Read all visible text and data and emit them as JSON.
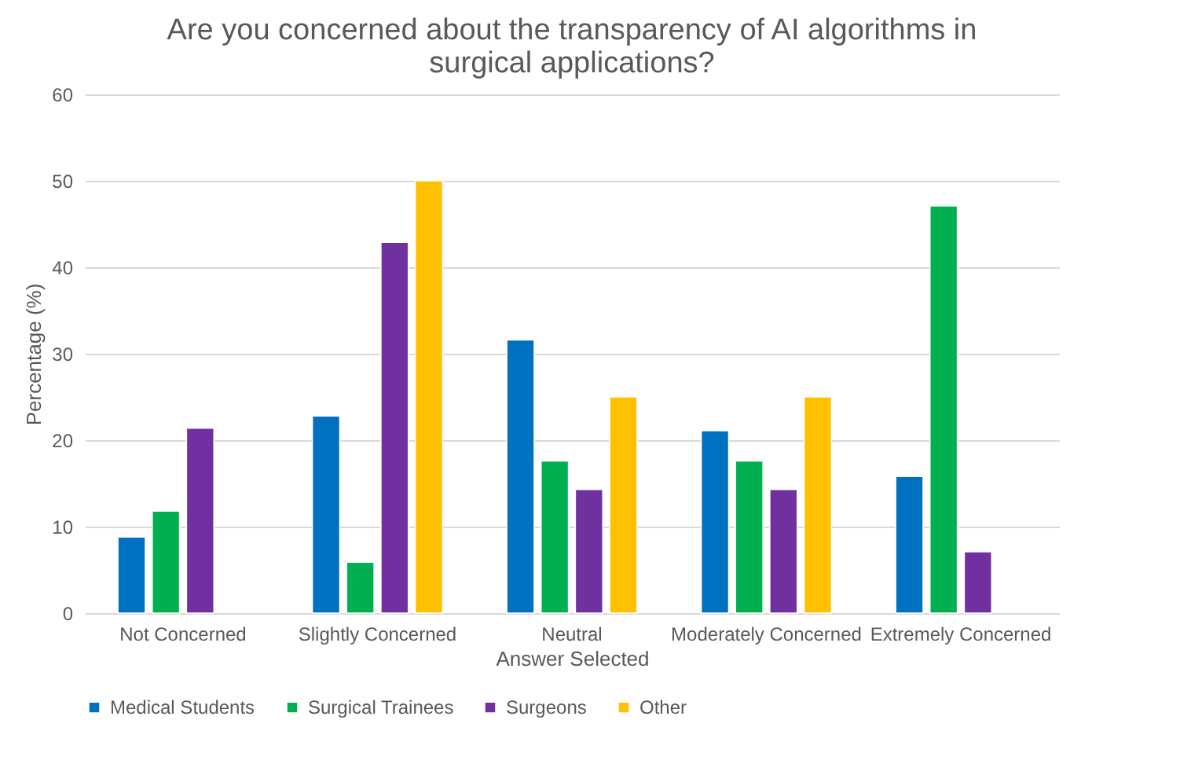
{
  "chart_data": {
    "type": "bar",
    "title": "Are you concerned about the transparency of AI algorithms in surgical applications?",
    "xlabel": "Answer Selected",
    "ylabel": "Percentage (%)",
    "categories": [
      "Not Concerned",
      "Slightly Concerned",
      "Neutral",
      "Moderately Concerned",
      "Extremely Concerned"
    ],
    "series": [
      {
        "name": "Medical Students",
        "color": "#0070c0",
        "values": [
          8.8,
          22.8,
          31.6,
          21.1,
          15.8
        ]
      },
      {
        "name": "Surgical Trainees",
        "color": "#00b050",
        "values": [
          11.8,
          5.9,
          17.6,
          17.6,
          47.1
        ]
      },
      {
        "name": "Surgeons",
        "color": "#7030a0",
        "values": [
          21.4,
          42.9,
          14.3,
          14.3,
          7.1
        ]
      },
      {
        "name": "Other",
        "color": "#ffc000",
        "values": [
          null,
          50,
          25,
          25,
          null
        ]
      }
    ],
    "ylim": [
      0,
      60
    ],
    "yticks": [
      0,
      10,
      20,
      30,
      40,
      50,
      60
    ],
    "grid": "y",
    "legend": "bottom"
  }
}
